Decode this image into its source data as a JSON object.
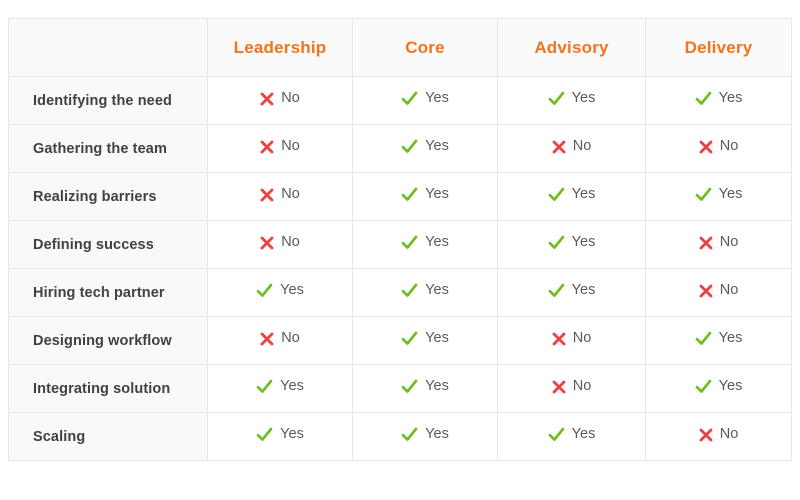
{
  "table": {
    "corner_label": "",
    "columns": [
      "Leadership",
      "Core",
      "Advisory",
      "Delivery"
    ],
    "rows": [
      {
        "label": "Identifying the need",
        "values": [
          "No",
          "Yes",
          "Yes",
          "Yes"
        ]
      },
      {
        "label": "Gathering the team",
        "values": [
          "No",
          "Yes",
          "No",
          "No"
        ]
      },
      {
        "label": "Realizing barriers",
        "values": [
          "No",
          "Yes",
          "Yes",
          "Yes"
        ]
      },
      {
        "label": "Defining success",
        "values": [
          "No",
          "Yes",
          "Yes",
          "No"
        ]
      },
      {
        "label": "Hiring tech partner",
        "values": [
          "Yes",
          "Yes",
          "Yes",
          "No"
        ]
      },
      {
        "label": "Designing workflow",
        "values": [
          "No",
          "Yes",
          "No",
          "Yes"
        ]
      },
      {
        "label": "Integrating solution",
        "values": [
          "Yes",
          "Yes",
          "No",
          "Yes"
        ]
      },
      {
        "label": "Scaling",
        "values": [
          "Yes",
          "Yes",
          "Yes",
          "No"
        ]
      }
    ],
    "yes_label": "Yes",
    "no_label": "No",
    "icons": {
      "yes": "check-icon",
      "no": "cross-icon"
    }
  },
  "colors": {
    "header_text": "#f4731c",
    "header_bg": "#fafafa",
    "label_bg": "#f9f9f9",
    "label_text": "#3f4145",
    "value_text": "#58595b",
    "check_green": "#6dbe23",
    "cross_red": "#ea4141",
    "border": "#e7e7e7"
  }
}
